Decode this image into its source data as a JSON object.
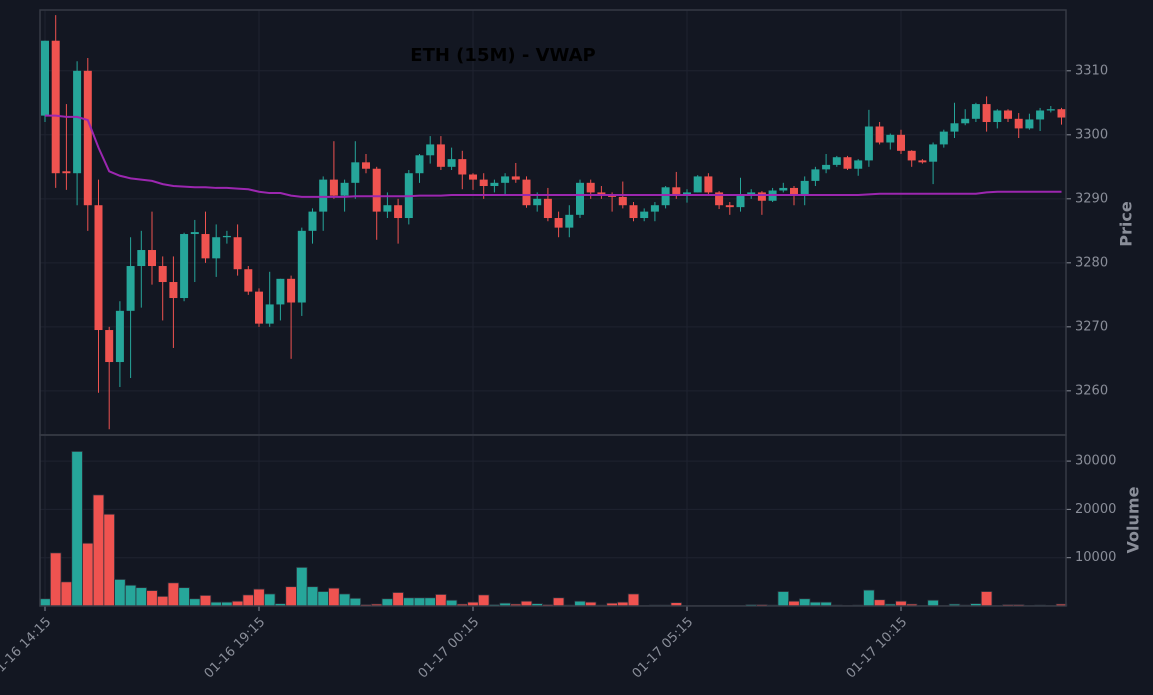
{
  "chart_data": {
    "type": "candlestick",
    "title": "ETH (15M) - VWAP",
    "ylabel": "Price",
    "volume_label": "Volume",
    "up_color": "#26a69a",
    "down_color": "#ef5350",
    "vwap_color": "#9c27b0",
    "grid": true,
    "categories": [
      "01-16 14:15",
      null,
      null,
      null,
      null,
      null,
      null,
      null,
      null,
      null,
      null,
      null,
      null,
      null,
      null,
      null,
      null,
      null,
      null,
      null,
      "01-16 19:15",
      null,
      null,
      null,
      null,
      null,
      null,
      null,
      null,
      null,
      null,
      null,
      null,
      null,
      null,
      null,
      null,
      null,
      null,
      null,
      "01-17 00:15",
      null,
      null,
      null,
      null,
      null,
      null,
      null,
      null,
      null,
      null,
      null,
      null,
      null,
      null,
      null,
      null,
      null,
      null,
      null,
      "01-17 05:15",
      null,
      null,
      null,
      null,
      null,
      null,
      null,
      null,
      null,
      null,
      null,
      null,
      null,
      null,
      null,
      null,
      null,
      null,
      null,
      "01-17 10:15",
      null,
      null,
      null,
      null,
      null,
      null,
      null,
      null,
      null,
      null,
      null,
      null,
      null,
      null,
      null
    ],
    "open": [
      3303,
      3314.7,
      3294.3,
      3294,
      3310,
      3289,
      3269.5,
      3264.5,
      3272.5,
      3279.5,
      3282,
      3279.5,
      3277,
      3274.5,
      3284.5,
      3284.5,
      3280.7,
      3284,
      3284,
      3279,
      3275.5,
      3270.5,
      3273.5,
      3277.5,
      3273.8,
      3285,
      3288,
      3293,
      3290.5,
      3292.5,
      3295.7,
      3294.7,
      3288,
      3289,
      3287,
      3294,
      3296.8,
      3298.5,
      3295,
      3296.2,
      3293.8,
      3293,
      3292,
      3292.5,
      3293.5,
      3293,
      3289,
      3290,
      3287,
      3285.5,
      3287.5,
      3292.5,
      3291,
      3290.5,
      3290.3,
      3289,
      3287,
      3288,
      3289,
      3291.8,
      3290.5,
      3291,
      3293.5,
      3291,
      3289,
      3288.7,
      3290.5,
      3291,
      3289.7,
      3291.3,
      3291.7,
      3290.5,
      3292.8,
      3294.6,
      3295.3,
      3296.5,
      3294.7,
      3296,
      3301.3,
      3298.8,
      3300,
      3297.5,
      3296,
      3295.8,
      3298.5,
      3300.5,
      3301.8,
      3302.5,
      3304.8,
      3302,
      3303.8,
      3302.5,
      3301,
      3302.4,
      3303.8,
      3304
    ],
    "high": [
      3314.7,
      3318.7,
      3304.8,
      3311.5,
      3312,
      3293,
      3270,
      3274,
      3284,
      3285,
      3288,
      3281,
      3281,
      3284.7,
      3286.7,
      3288,
      3286,
      3285,
      3286,
      3279.5,
      3276,
      3278.6,
      3277.5,
      3278,
      3285.5,
      3288.5,
      3293.5,
      3299,
      3293,
      3299,
      3297,
      3295,
      3291,
      3290,
      3294.5,
      3297,
      3299.8,
      3299.8,
      3298,
      3297.5,
      3294,
      3294,
      3293,
      3294,
      3295.6,
      3293.5,
      3291,
      3291.7,
      3288,
      3289,
      3293,
      3293,
      3292,
      3291,
      3292.7,
      3289.5,
      3288.5,
      3289.5,
      3292,
      3294.2,
      3291.5,
      3293.7,
      3294,
      3291.2,
      3289.5,
      3293.3,
      3291.5,
      3291.2,
      3291.7,
      3292.5,
      3292,
      3293.5,
      3295,
      3297,
      3296.7,
      3296.7,
      3296.2,
      3303.9,
      3302,
      3300.2,
      3300.8,
      3297.6,
      3296.2,
      3298.8,
      3300.8,
      3305,
      3304,
      3305,
      3306,
      3304,
      3304,
      3303.4,
      3303.3,
      3304.2,
      3304.5,
      3304.2
    ],
    "low": [
      3302,
      3291.7,
      3291.4,
      3289,
      3285,
      3259.7,
      3254,
      3260.6,
      3262,
      3273,
      3276.6,
      3271,
      3266.7,
      3274,
      3277,
      3280,
      3277.8,
      3283,
      3278,
      3275,
      3270,
      3270,
      3271,
      3265,
      3271.7,
      3283,
      3285,
      3290,
      3288,
      3290,
      3294,
      3283.6,
      3287,
      3283,
      3286,
      3292.5,
      3295.5,
      3294.5,
      3294.5,
      3291.5,
      3291.4,
      3290,
      3291,
      3290.5,
      3292.5,
      3288.6,
      3288,
      3286.5,
      3284,
      3284,
      3287,
      3290,
      3290,
      3288,
      3288.5,
      3286.5,
      3286.5,
      3286.5,
      3288.5,
      3290,
      3289.4,
      3291,
      3290.5,
      3288.4,
      3287.5,
      3288,
      3290,
      3287.5,
      3289.5,
      3291,
      3289,
      3289,
      3292,
      3294,
      3295,
      3294.5,
      3293.6,
      3295,
      3298.5,
      3297.7,
      3297,
      3295,
      3295.5,
      3292.3,
      3298,
      3299.5,
      3301.5,
      3302,
      3300.5,
      3301,
      3302,
      3299.5,
      3300.8,
      3300.6,
      3303.5,
      3301.6
    ],
    "close": [
      3314.7,
      3294,
      3294,
      3310,
      3289,
      3269.5,
      3264.5,
      3272.5,
      3279.5,
      3282,
      3279.5,
      3277,
      3274.5,
      3284.5,
      3284.8,
      3280.7,
      3284,
      3284.2,
      3279,
      3275.5,
      3270.5,
      3273.5,
      3277.5,
      3273.8,
      3285,
      3288,
      3293,
      3290.5,
      3292.5,
      3295.7,
      3294.7,
      3288,
      3289,
      3287,
      3294,
      3296.8,
      3298.5,
      3295,
      3296.2,
      3293.8,
      3293,
      3292,
      3292.5,
      3293.5,
      3293,
      3289,
      3290,
      3287,
      3285.5,
      3287.5,
      3292.5,
      3291,
      3290.5,
      3290.3,
      3289,
      3287,
      3288,
      3289,
      3291.8,
      3290.5,
      3291,
      3293.5,
      3291,
      3289,
      3288.7,
      3290.5,
      3291,
      3289.7,
      3291.3,
      3291.7,
      3290.5,
      3292.8,
      3294.6,
      3295.3,
      3296.5,
      3294.7,
      3296,
      3301.3,
      3298.8,
      3300,
      3297.5,
      3296,
      3295.7,
      3298.5,
      3300.5,
      3301.8,
      3302.5,
      3304.8,
      3302,
      3303.8,
      3302.5,
      3301,
      3302.4,
      3303.8,
      3304,
      3302.7
    ],
    "vwap": [
      3303,
      3303,
      3302.8,
      3302.8,
      3302.3,
      3298,
      3294.3,
      3293.6,
      3293.2,
      3293,
      3292.8,
      3292.3,
      3292,
      3291.9,
      3291.8,
      3291.8,
      3291.7,
      3291.7,
      3291.6,
      3291.5,
      3291.1,
      3290.9,
      3290.9,
      3290.5,
      3290.3,
      3290.3,
      3290.3,
      3290.3,
      3290.3,
      3290.4,
      3290.4,
      3290.4,
      3290.4,
      3290.4,
      3290.4,
      3290.5,
      3290.5,
      3290.5,
      3290.6,
      3290.6,
      3290.6,
      3290.6,
      3290.6,
      3290.6,
      3290.6,
      3290.6,
      3290.6,
      3290.6,
      3290.6,
      3290.6,
      3290.6,
      3290.6,
      3290.6,
      3290.6,
      3290.6,
      3290.6,
      3290.6,
      3290.6,
      3290.6,
      3290.6,
      3290.6,
      3290.6,
      3290.6,
      3290.6,
      3290.6,
      3290.6,
      3290.6,
      3290.6,
      3290.6,
      3290.6,
      3290.6,
      3290.6,
      3290.6,
      3290.6,
      3290.6,
      3290.6,
      3290.6,
      3290.7,
      3290.8,
      3290.8,
      3290.8,
      3290.8,
      3290.8,
      3290.8,
      3290.8,
      3290.8,
      3290.8,
      3290.8,
      3291,
      3291.1,
      3291.1,
      3291.1,
      3291.1,
      3291.1,
      3291.1,
      3291.1
    ],
    "volume": [
      1500,
      11000,
      5000,
      32000,
      13000,
      23000,
      19000,
      5500,
      4300,
      3800,
      3200,
      2000,
      4800,
      3800,
      1500,
      2200,
      800,
      800,
      1000,
      2300,
      3500,
      2500,
      500,
      4000,
      8000,
      4000,
      3000,
      3700,
      2500,
      1600,
      300,
      400,
      1500,
      2800,
      1700,
      1700,
      1700,
      2400,
      1200,
      400,
      800,
      2300,
      300,
      600,
      400,
      1000,
      500,
      300,
      1700,
      200,
      1000,
      800,
      200,
      600,
      800,
      2500,
      100,
      200,
      200,
      700,
      100,
      100,
      100,
      100,
      100,
      100,
      300,
      300,
      200,
      3000,
      1000,
      1500,
      800,
      800,
      200,
      100,
      200,
      3300,
      1300,
      400,
      1000,
      400,
      100,
      1200,
      100,
      400,
      200,
      500,
      3000,
      100,
      300,
      300,
      100,
      200,
      100,
      400
    ],
    "ylim": [
      3253.1,
      3319.5
    ],
    "yticks": [
      3260,
      3270,
      3280,
      3290,
      3300,
      3310
    ],
    "volume_ylim": [
      0,
      35400
    ],
    "volume_yticks": [
      10000,
      20000,
      30000
    ]
  }
}
